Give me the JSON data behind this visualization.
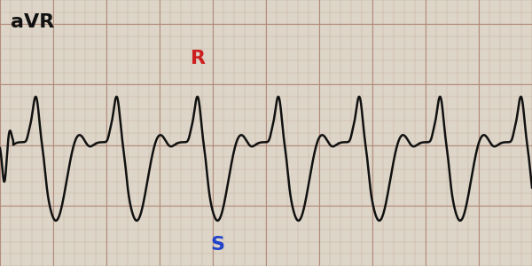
{
  "title": "aVR",
  "title_fontsize": 16,
  "title_color": "#111111",
  "bg_color": "#ddd5c8",
  "grid_minor_color": "#c0a898",
  "grid_major_color": "#b08878",
  "ecg_color": "#111111",
  "ecg_linewidth": 1.8,
  "R_label": "R",
  "R_label_color": "#cc2020",
  "S_label": "S",
  "S_label_color": "#2244cc",
  "label_fontsize": 16,
  "xlim": [
    0,
    10
  ],
  "ylim": [
    -2.2,
    2.2
  ],
  "n_points": 8000
}
